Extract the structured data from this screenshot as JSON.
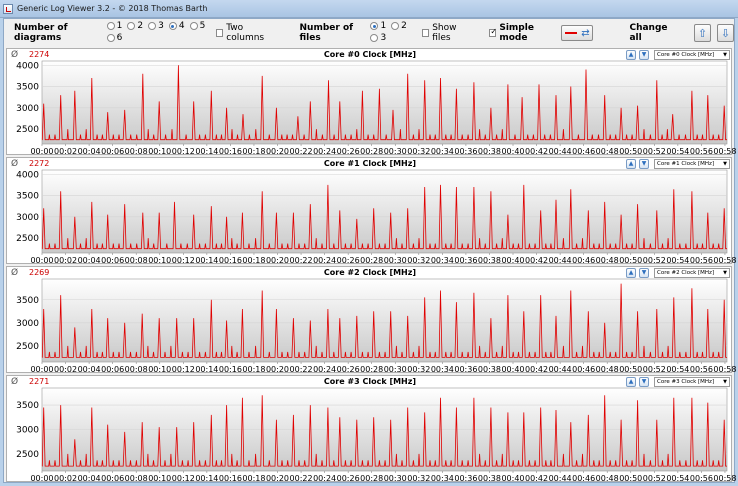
{
  "window": {
    "title": "Generic Log Viewer 3.2 - © 2018 Thomas Barth"
  },
  "toolbar": {
    "num_diagrams_label": "Number of diagrams",
    "diagram_options": [
      "1",
      "2",
      "3",
      "4",
      "5",
      "6"
    ],
    "diagram_selected": "4",
    "two_columns_label": "Two columns",
    "num_files_label": "Number of files",
    "file_options": [
      "1",
      "2",
      "3"
    ],
    "file_selected": "1",
    "show_files_label": "Show files",
    "simple_mode_label": "Simple mode",
    "simple_mode_checked": true,
    "change_all_label": "Change all",
    "line_color": "#e00000"
  },
  "ticks": [
    "00:00",
    "00:02",
    "00:04",
    "00:06",
    "00:08",
    "00:10",
    "00:12",
    "00:14",
    "00:16",
    "00:18",
    "00:20",
    "00:22",
    "00:24",
    "00:26",
    "00:28",
    "00:30",
    "00:32",
    "00:34",
    "00:36",
    "00:38",
    "00:40",
    "00:42",
    "00:44",
    "00:46",
    "00:48",
    "00:50",
    "00:52",
    "00:54",
    "00:56",
    "00:58"
  ],
  "panels": [
    {
      "avg_symbol": "Ø",
      "avg": "2274",
      "title": "Core #0 Clock [MHz]",
      "select": "Core #0 Clock [MHz]",
      "yticks": [
        "4000",
        "3500",
        "3000",
        "2500"
      ],
      "yrange": [
        2150,
        4100
      ],
      "spikes": [
        [
          0.3,
          3100
        ],
        [
          3.3,
          3300
        ],
        [
          5.8,
          3400
        ],
        [
          8.8,
          3700
        ],
        [
          11.6,
          2900
        ],
        [
          14.6,
          2950
        ],
        [
          17.8,
          3800
        ],
        [
          20.7,
          3150
        ],
        [
          24.1,
          4000
        ],
        [
          26.8,
          3150
        ],
        [
          29.9,
          3400
        ],
        [
          32.6,
          3000
        ],
        [
          35.5,
          2850
        ],
        [
          38.9,
          3750
        ],
        [
          41.4,
          3000
        ],
        [
          45.2,
          2800
        ],
        [
          47.4,
          3150
        ],
        [
          50.6,
          3650
        ],
        [
          52.6,
          3150
        ],
        [
          56.6,
          3400
        ],
        [
          59.6,
          3450
        ],
        [
          62.0,
          2950
        ],
        [
          64.6,
          3800
        ],
        [
          67.6,
          3650
        ],
        [
          70.4,
          3700
        ],
        [
          73.2,
          3450
        ],
        [
          76.3,
          3600
        ],
        [
          79.3,
          3000
        ],
        [
          82.3,
          3550
        ],
        [
          84.8,
          3250
        ],
        [
          87.8,
          3550
        ],
        [
          90.8,
          3300
        ],
        [
          93.4,
          3500
        ],
        [
          96.1,
          3900
        ],
        [
          99.4,
          3300
        ],
        [
          102.3,
          3000
        ],
        [
          105.2,
          3050
        ],
        [
          108.6,
          3650
        ],
        [
          111.4,
          2850
        ],
        [
          114.8,
          3400
        ],
        [
          117.6,
          3300
        ],
        [
          120.5,
          3050
        ]
      ]
    },
    {
      "avg_symbol": "Ø",
      "avg": "2272",
      "title": "Core #1 Clock [MHz]",
      "select": "Core #1 Clock [MHz]",
      "yticks": [
        "4000",
        "3500",
        "3000",
        "2500"
      ],
      "yrange": [
        2150,
        4100
      ],
      "spikes": [
        [
          0.3,
          3200
        ],
        [
          3.3,
          3600
        ],
        [
          5.8,
          3000
        ],
        [
          8.8,
          3350
        ],
        [
          11.6,
          3050
        ],
        [
          14.6,
          3300
        ],
        [
          17.8,
          3100
        ],
        [
          20.7,
          3100
        ],
        [
          23.4,
          3350
        ],
        [
          26.8,
          3050
        ],
        [
          29.9,
          3250
        ],
        [
          32.6,
          3000
        ],
        [
          35.4,
          3100
        ],
        [
          38.9,
          3600
        ],
        [
          41.4,
          3100
        ],
        [
          44.4,
          3100
        ],
        [
          47.4,
          3300
        ],
        [
          50.5,
          3750
        ],
        [
          52.6,
          3150
        ],
        [
          55.6,
          2950
        ],
        [
          58.6,
          3200
        ],
        [
          61.6,
          3100
        ],
        [
          64.6,
          3200
        ],
        [
          67.6,
          3700
        ],
        [
          70.4,
          3750
        ],
        [
          73.2,
          3700
        ],
        [
          76.3,
          3700
        ],
        [
          79.3,
          3600
        ],
        [
          82.3,
          3050
        ],
        [
          85.1,
          3750
        ],
        [
          88.1,
          3150
        ],
        [
          90.8,
          3400
        ],
        [
          93.4,
          3650
        ],
        [
          96.5,
          3150
        ],
        [
          99.4,
          3350
        ],
        [
          102.3,
          3050
        ],
        [
          105.2,
          3300
        ],
        [
          108.6,
          3150
        ],
        [
          111.6,
          3650
        ],
        [
          114.8,
          3600
        ],
        [
          117.6,
          3100
        ],
        [
          120.5,
          3200
        ]
      ]
    },
    {
      "avg_symbol": "Ø",
      "avg": "2269",
      "title": "Core #2 Clock [MHz]",
      "select": "Core #2 Clock [MHz]",
      "yticks": [
        "3500",
        "3000",
        "2500"
      ],
      "yrange": [
        2150,
        3950
      ],
      "spikes": [
        [
          0.3,
          3300
        ],
        [
          3.3,
          3600
        ],
        [
          5.8,
          2900
        ],
        [
          8.8,
          3300
        ],
        [
          11.6,
          3100
        ],
        [
          14.6,
          3000
        ],
        [
          17.7,
          3200
        ],
        [
          20.7,
          3100
        ],
        [
          23.8,
          3100
        ],
        [
          26.8,
          3100
        ],
        [
          29.9,
          3500
        ],
        [
          32.6,
          3050
        ],
        [
          35.4,
          3300
        ],
        [
          38.9,
          3700
        ],
        [
          41.4,
          3300
        ],
        [
          44.4,
          3100
        ],
        [
          47.4,
          3050
        ],
        [
          50.5,
          3300
        ],
        [
          52.6,
          3100
        ],
        [
          55.6,
          3150
        ],
        [
          58.6,
          3250
        ],
        [
          61.6,
          3250
        ],
        [
          64.6,
          3150
        ],
        [
          67.6,
          3550
        ],
        [
          70.4,
          3700
        ],
        [
          73.2,
          3450
        ],
        [
          76.3,
          3650
        ],
        [
          79.3,
          3100
        ],
        [
          82.3,
          3600
        ],
        [
          85.1,
          3250
        ],
        [
          88.1,
          3600
        ],
        [
          90.8,
          3150
        ],
        [
          93.4,
          3700
        ],
        [
          96.5,
          3250
        ],
        [
          99.4,
          3000
        ],
        [
          102.3,
          3850
        ],
        [
          105.2,
          3250
        ],
        [
          108.6,
          3300
        ],
        [
          111.6,
          3550
        ],
        [
          114.8,
          3750
        ],
        [
          117.6,
          3300
        ],
        [
          120.5,
          3500
        ]
      ]
    },
    {
      "avg_symbol": "Ø",
      "avg": "2271",
      "title": "Core #3 Clock [MHz]",
      "select": "Core #3 Clock [MHz]",
      "yticks": [
        "3500",
        "3000",
        "2500"
      ],
      "yrange": [
        2150,
        3850
      ],
      "spikes": [
        [
          0.3,
          3450
        ],
        [
          3.3,
          3500
        ],
        [
          5.8,
          2800
        ],
        [
          8.8,
          3450
        ],
        [
          11.6,
          3100
        ],
        [
          14.6,
          2950
        ],
        [
          17.7,
          3150
        ],
        [
          20.7,
          3050
        ],
        [
          23.8,
          3050
        ],
        [
          26.8,
          3150
        ],
        [
          29.9,
          3300
        ],
        [
          32.6,
          3500
        ],
        [
          35.4,
          3650
        ],
        [
          38.9,
          3700
        ],
        [
          41.4,
          3200
        ],
        [
          44.4,
          3300
        ],
        [
          47.4,
          3500
        ],
        [
          50.5,
          3450
        ],
        [
          52.6,
          3250
        ],
        [
          55.6,
          3200
        ],
        [
          58.6,
          3250
        ],
        [
          61.6,
          3200
        ],
        [
          64.6,
          3450
        ],
        [
          67.6,
          3350
        ],
        [
          70.4,
          3650
        ],
        [
          73.2,
          3450
        ],
        [
          76.3,
          3650
        ],
        [
          79.3,
          3450
        ],
        [
          82.3,
          3350
        ],
        [
          85.1,
          3350
        ],
        [
          88.1,
          3450
        ],
        [
          90.8,
          3400
        ],
        [
          93.4,
          3150
        ],
        [
          96.5,
          3300
        ],
        [
          99.4,
          3700
        ],
        [
          102.3,
          3200
        ],
        [
          105.2,
          3600
        ],
        [
          108.6,
          3200
        ],
        [
          111.6,
          3650
        ],
        [
          114.8,
          3650
        ],
        [
          117.6,
          3550
        ],
        [
          120.5,
          3200
        ]
      ]
    }
  ]
}
